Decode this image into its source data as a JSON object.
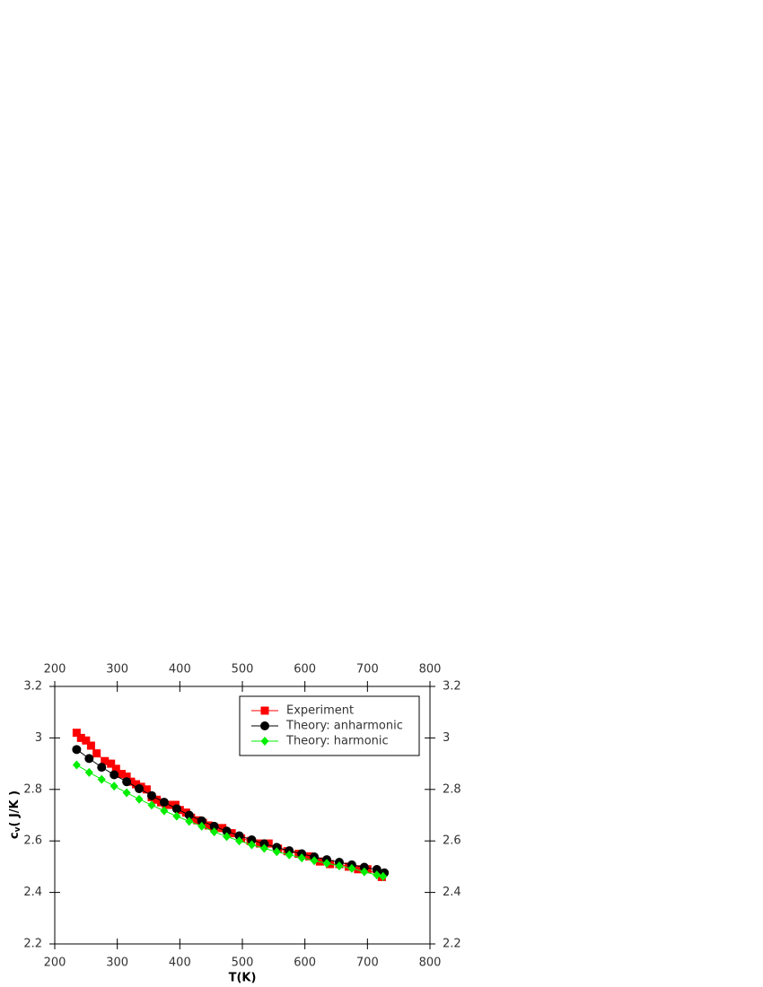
{
  "chart_data": {
    "type": "line",
    "xlabel": "T(K)",
    "ylabel": {
      "main": "c",
      "sub": "v",
      "unit": "( J/K )"
    },
    "xlim": [
      200,
      800
    ],
    "ylim": [
      2.2,
      3.2
    ],
    "xticks": [
      200,
      300,
      400,
      500,
      600,
      700,
      800
    ],
    "yticks": [
      2.2,
      2.4,
      2.6,
      2.8,
      3,
      3.2
    ],
    "legend": "upper right",
    "series": [
      {
        "name": "Experiment",
        "color": "#ff0000",
        "marker": "square",
        "x": [
          235,
          242,
          250,
          258,
          267,
          280,
          290,
          298,
          307,
          315,
          322,
          330,
          338,
          347,
          355,
          363,
          370,
          378,
          385,
          393,
          400,
          410,
          418,
          428,
          437,
          446,
          455,
          468,
          483,
          498,
          513,
          528,
          542,
          557,
          572,
          590,
          607,
          624,
          640,
          655,
          670,
          685,
          700,
          723
        ],
        "values": [
          3.02,
          3.0,
          2.99,
          2.97,
          2.94,
          2.91,
          2.9,
          2.88,
          2.86,
          2.85,
          2.83,
          2.82,
          2.81,
          2.8,
          2.77,
          2.76,
          2.75,
          2.74,
          2.74,
          2.74,
          2.72,
          2.71,
          2.69,
          2.68,
          2.67,
          2.66,
          2.65,
          2.65,
          2.63,
          2.61,
          2.6,
          2.59,
          2.59,
          2.57,
          2.56,
          2.55,
          2.54,
          2.52,
          2.51,
          2.51,
          2.5,
          2.49,
          2.49,
          2.46
        ]
      },
      {
        "name": "Theory: anharmonic",
        "color": "#000000",
        "marker": "circle",
        "x": [
          235,
          255,
          275,
          295,
          315,
          335,
          355,
          375,
          395,
          415,
          435,
          455,
          475,
          495,
          515,
          535,
          555,
          575,
          595,
          615,
          635,
          655,
          675,
          695,
          715,
          727
        ],
        "values": [
          2.955,
          2.92,
          2.886,
          2.857,
          2.83,
          2.803,
          2.776,
          2.75,
          2.725,
          2.7,
          2.678,
          2.657,
          2.638,
          2.62,
          2.604,
          2.589,
          2.575,
          2.562,
          2.55,
          2.538,
          2.527,
          2.517,
          2.507,
          2.498,
          2.489,
          2.476
        ]
      },
      {
        "name": "Theory: harmonic",
        "color": "#00ee00",
        "marker": "diamond",
        "x": [
          235,
          255,
          275,
          295,
          315,
          335,
          355,
          375,
          395,
          415,
          435,
          455,
          475,
          495,
          515,
          535,
          555,
          575,
          595,
          615,
          635,
          655,
          675,
          695,
          715,
          725
        ],
        "values": [
          2.895,
          2.866,
          2.839,
          2.813,
          2.787,
          2.762,
          2.739,
          2.717,
          2.696,
          2.676,
          2.657,
          2.635,
          2.617,
          2.6,
          2.585,
          2.571,
          2.558,
          2.546,
          2.534,
          2.523,
          2.513,
          2.503,
          2.493,
          2.48,
          2.468,
          2.462
        ]
      }
    ]
  }
}
